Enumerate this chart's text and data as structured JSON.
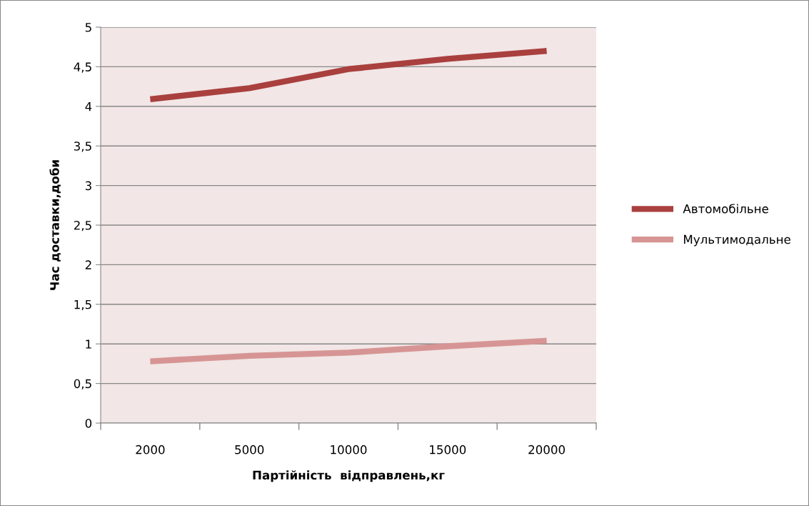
{
  "chart_data": {
    "type": "line",
    "xlabel": "Партійність  відправлень,кг",
    "ylabel": "Час доставки,доби",
    "categories": [
      "2000",
      "5000",
      "10000",
      "15000",
      "20000"
    ],
    "series": [
      {
        "name": "Автомобільне",
        "color": "#a9403e",
        "values": [
          4.09,
          4.23,
          4.47,
          4.6,
          4.7
        ]
      },
      {
        "name": "Мультимодальне",
        "color": "#d69594",
        "values": [
          0.78,
          0.85,
          0.89,
          0.97,
          1.04
        ]
      }
    ],
    "ylim": [
      0,
      5
    ],
    "yticks": [
      0,
      {
        "value": 0.5,
        "label": "0,5"
      },
      1,
      {
        "value": 1.5,
        "label": "1,5"
      },
      2,
      {
        "value": 2.5,
        "label": "2,5"
      },
      3,
      {
        "value": 3.5,
        "label": "3,5"
      },
      4,
      {
        "value": 4.5,
        "label": "4,5"
      },
      5
    ],
    "grid": "y",
    "legend": "right",
    "marker": "none",
    "line_style": "solid"
  }
}
